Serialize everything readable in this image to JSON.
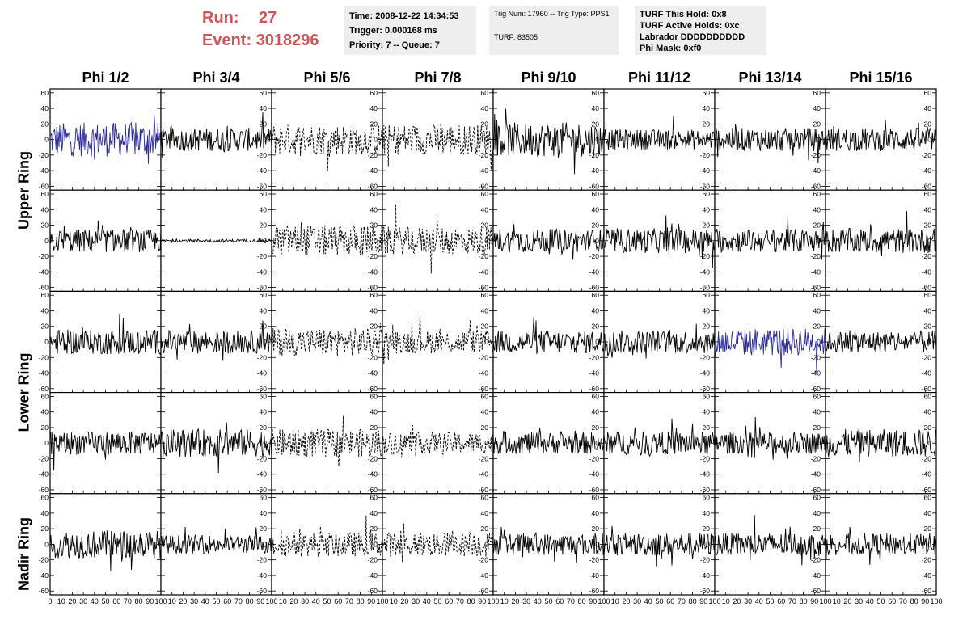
{
  "header": {
    "run_label": "Run:",
    "run_value": "27",
    "event_label": "Event:",
    "event_value": "3018296",
    "time": "Time: 2008-12-22 14:34:53",
    "trigger": "Trigger: 0.000168 ms",
    "priority": "Priority: 7 -- Queue: 7",
    "trig_num": "Trig Num: 17960 -- Trig Type: PPS1",
    "turf_id": "TURF: 83505",
    "turf_hold": "TURF This Hold: 0x8",
    "turf_active": "TURF Active Holds: 0xc",
    "labrador": "Labrador DDDDDDDDDD",
    "phi_mask": "Phi Mask: 0xf0"
  },
  "columns": [
    "Phi 1/2",
    "Phi 3/4",
    "Phi 5/6",
    "Phi 7/8",
    "Phi 9/10",
    "Phi 11/12",
    "Phi 13/14",
    "Phi 15/16"
  ],
  "rows": [
    "Upper Ring",
    "Lower Ring",
    "Nadir Ring"
  ],
  "chart_data": {
    "type": "line",
    "panel_rows": 5,
    "panel_cols": 8,
    "x_range": [
      0,
      100
    ],
    "y_range": [
      -65,
      65
    ],
    "y_ticks": [
      -60,
      -40,
      -20,
      0,
      20,
      40,
      60
    ],
    "x_ticks": [
      0,
      10,
      20,
      30,
      40,
      50,
      60,
      70,
      80,
      90,
      100
    ],
    "colors": {
      "normal": "#000000",
      "highlight": "#2a2a9a"
    },
    "panels": [
      [
        {
          "amp": 22,
          "style": "highlight"
        },
        {
          "amp": 15,
          "style": "solid"
        },
        {
          "amp": 20,
          "style": "dashed"
        },
        {
          "amp": 20,
          "style": "dashed"
        },
        {
          "amp": 22,
          "style": "solid"
        },
        {
          "amp": 13,
          "style": "solid"
        },
        {
          "amp": 15,
          "style": "solid"
        },
        {
          "amp": 15,
          "style": "solid"
        }
      ],
      [
        {
          "amp": 15,
          "style": "solid"
        },
        {
          "amp": 2,
          "style": "solid"
        },
        {
          "amp": 20,
          "style": "dashed"
        },
        {
          "amp": 18,
          "style": "dashed"
        },
        {
          "amp": 15,
          "style": "solid"
        },
        {
          "amp": 16,
          "style": "solid"
        },
        {
          "amp": 15,
          "style": "solid"
        },
        {
          "amp": 16,
          "style": "solid"
        }
      ],
      [
        {
          "amp": 16,
          "style": "solid"
        },
        {
          "amp": 15,
          "style": "solid"
        },
        {
          "amp": 18,
          "style": "dashed"
        },
        {
          "amp": 15,
          "style": "dashed"
        },
        {
          "amp": 15,
          "style": "solid"
        },
        {
          "amp": 15,
          "style": "solid"
        },
        {
          "amp": 18,
          "style": "highlight"
        },
        {
          "amp": 14,
          "style": "solid"
        }
      ],
      [
        {
          "amp": 15,
          "style": "solid"
        },
        {
          "amp": 18,
          "style": "solid"
        },
        {
          "amp": 18,
          "style": "dashed"
        },
        {
          "amp": 14,
          "style": "dashed"
        },
        {
          "amp": 14,
          "style": "solid"
        },
        {
          "amp": 15,
          "style": "solid"
        },
        {
          "amp": 14,
          "style": "solid"
        },
        {
          "amp": 18,
          "style": "solid"
        }
      ],
      [
        {
          "amp": 18,
          "style": "solid"
        },
        {
          "amp": 12,
          "style": "solid"
        },
        {
          "amp": 16,
          "style": "dashed"
        },
        {
          "amp": 16,
          "style": "dashed"
        },
        {
          "amp": 14,
          "style": "solid"
        },
        {
          "amp": 15,
          "style": "solid"
        },
        {
          "amp": 15,
          "style": "solid"
        },
        {
          "amp": 14,
          "style": "solid"
        }
      ]
    ]
  }
}
